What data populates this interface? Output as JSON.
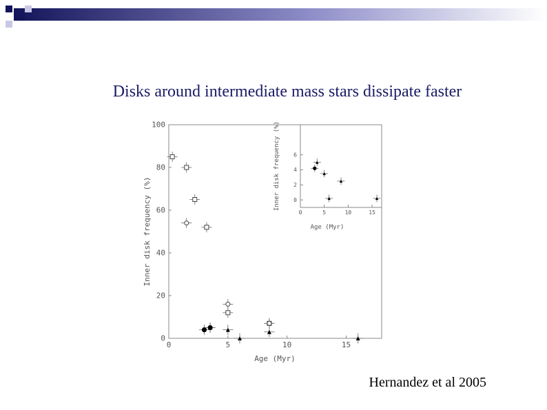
{
  "slide": {
    "title": "Disks around intermediate mass stars dissipate faster",
    "credit": "Hernandez et al 2005",
    "accent_colors": {
      "navy": "#14145a",
      "blue": "#6a6ab8",
      "light": "#c8c8e6"
    }
  },
  "chart_data": [
    {
      "type": "scatter",
      "xlabel": "Age (Myr)",
      "ylabel": "Inner disk frequency (%)",
      "xlim": [
        0,
        18
      ],
      "ylim": [
        0,
        100
      ],
      "xticks": [
        "0",
        "5",
        "10",
        "15"
      ],
      "yticks": [
        "0",
        "20",
        "40",
        "60",
        "80",
        "100"
      ],
      "series": [
        {
          "marker": "square-open",
          "points": [
            {
              "x": 0.3,
              "y": 85
            },
            {
              "x": 1.5,
              "y": 80
            },
            {
              "x": 2.2,
              "y": 65
            },
            {
              "x": 3.2,
              "y": 52
            },
            {
              "x": 5.0,
              "y": 12
            },
            {
              "x": 8.5,
              "y": 7
            }
          ]
        },
        {
          "marker": "circle-open",
          "points": [
            {
              "x": 1.5,
              "y": 54
            },
            {
              "x": 5.0,
              "y": 16
            },
            {
              "x": 8.5,
              "y": 7
            }
          ]
        },
        {
          "marker": "triangle-filled",
          "points": [
            {
              "x": 3.5,
              "y": 5
            },
            {
              "x": 5.0,
              "y": 4
            },
            {
              "x": 6.0,
              "y": 0
            },
            {
              "x": 8.5,
              "y": 3
            },
            {
              "x": 16.0,
              "y": 0
            }
          ]
        },
        {
          "marker": "circle-filled",
          "points": [
            {
              "x": 3.0,
              "y": 4
            },
            {
              "x": 3.5,
              "y": 5
            }
          ]
        }
      ]
    },
    {
      "type": "scatter",
      "xlabel": "Age (Myr)",
      "ylabel": "Inner disk frequency (%)",
      "xlim": [
        0,
        17
      ],
      "ylim": [
        -1,
        10
      ],
      "xticks": [
        "0",
        "5",
        "10",
        "15"
      ],
      "yticks": [
        "0",
        "2",
        "4",
        "6"
      ],
      "series": [
        {
          "marker": "triangle-filled",
          "points": [
            {
              "x": 3.5,
              "y": 5.0
            },
            {
              "x": 5.0,
              "y": 3.5
            },
            {
              "x": 6.0,
              "y": 0.2
            },
            {
              "x": 8.5,
              "y": 2.5
            },
            {
              "x": 16.0,
              "y": 0.2
            }
          ]
        },
        {
          "marker": "circle-filled",
          "points": [
            {
              "x": 3.0,
              "y": 4.2
            }
          ]
        }
      ]
    }
  ]
}
